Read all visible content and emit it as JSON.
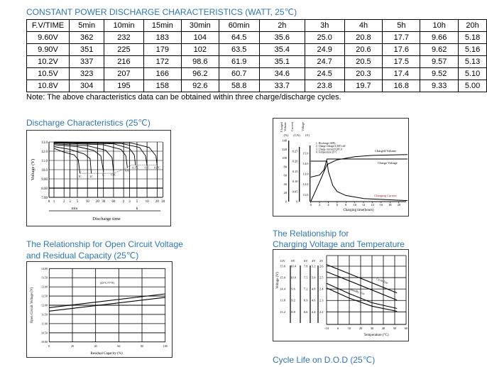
{
  "table": {
    "title": "CONSTANT POWER DISCHARGE CHARACTERISTICS (WATT, 25℃)",
    "headers": [
      "F.V/TIME",
      "5min",
      "10min",
      "15min",
      "30min",
      "60min",
      "2h",
      "3h",
      "4h",
      "5h",
      "10h",
      "20h"
    ],
    "rows": [
      [
        "9.60V",
        "362",
        "232",
        "183",
        "104",
        "64.5",
        "35.6",
        "25.0",
        "20.8",
        "17.7",
        "9.66",
        "5.18"
      ],
      [
        "9.90V",
        "351",
        "225",
        "179",
        "102",
        "63.5",
        "35.4",
        "24.9",
        "20.6",
        "17.6",
        "9.62",
        "5.16"
      ],
      [
        "10.2V",
        "337",
        "216",
        "172",
        "98.6",
        "61.9",
        "35.1",
        "24.7",
        "20.5",
        "17.5",
        "9.57",
        "5.13"
      ],
      [
        "10.5V",
        "323",
        "207",
        "166",
        "96.2",
        "60.7",
        "34.6",
        "24.5",
        "20.3",
        "17.4",
        "9.52",
        "5.10"
      ],
      [
        "10.8V",
        "304",
        "195",
        "158",
        "92.6",
        "58.8",
        "33.7",
        "23.8",
        "19.7",
        "16.8",
        "9.33",
        "5.00"
      ]
    ],
    "note": "Note: The above characteristics data can be obtained within three charge/discharge cycles."
  },
  "headings": {
    "discharge": "Discharge Characteristics (25℃)",
    "ocv_line1": "The Relationship for Open Circuit Voltage",
    "ocv_line2": "and Residual Capacity (25℃)",
    "charging_line1": "The Relationship for",
    "charging_line2": "Charging Voltage and Temperature",
    "cycle": "Cycle Life on D.O.D (25℃)"
  },
  "accent_color": "#2e75b6",
  "chart_data": [
    {
      "id": "discharge",
      "type": "line",
      "ylabel": "Voltage (V)",
      "xlabel": "Discharge time",
      "x_groups": [
        "min",
        "h"
      ],
      "ylim": [
        7.0,
        13.0
      ],
      "y_ticks": [
        "7.00",
        "8.00",
        "9.00",
        "10.0",
        "11.0",
        "12.0",
        "13.0"
      ],
      "x_ticks_min": [
        "0",
        "1",
        "2",
        "3",
        "5",
        "10",
        "20",
        "30",
        "60"
      ],
      "x_ticks_h": [
        "2",
        "3",
        "5",
        "10",
        "20",
        "30"
      ],
      "series": [
        {
          "name": "3C",
          "points": [
            [
              1,
              12.3
            ],
            [
              2,
              11.9
            ],
            [
              4,
              11.6
            ],
            [
              5.3,
              11.1
            ],
            [
              6,
              9.6
            ]
          ]
        },
        {
          "name": "2C",
          "points": [
            [
              1,
              12.5
            ],
            [
              3,
              12.2
            ],
            [
              8,
              11.7
            ],
            [
              12,
              11.2
            ],
            [
              13,
              9.6
            ]
          ]
        },
        {
          "name": "1C",
          "points": [
            [
              1,
              12.7
            ],
            [
              5,
              12.5
            ],
            [
              15,
              12.1
            ],
            [
              25,
              11.5
            ],
            [
              30,
              9.8
            ]
          ]
        },
        {
          "name": "0.6C",
          "points": [
            [
              1,
              12.8
            ],
            [
              10,
              12.6
            ],
            [
              35,
              12.1
            ],
            [
              54,
              11.3
            ],
            [
              60,
              9.8
            ]
          ]
        },
        {
          "name": "0.3C",
          "points": [
            [
              1,
              12.9
            ],
            [
              30,
              12.7
            ],
            [
              100,
              12.2
            ],
            [
              140,
              11.5
            ],
            [
              155,
              10.2
            ]
          ]
        },
        {
          "name": "0.17C",
          "points": [
            [
              1,
              12.95
            ],
            [
              60,
              12.8
            ],
            [
              180,
              12.3
            ],
            [
              250,
              11.6
            ],
            [
              270,
              10.5
            ]
          ]
        },
        {
          "name": "0.1C",
          "points": [
            [
              1,
              13.0
            ],
            [
              100,
              12.85
            ],
            [
              360,
              12.4
            ],
            [
              540,
              11.5
            ],
            [
              600,
              10.5
            ]
          ]
        },
        {
          "name": "0.05C",
          "points": [
            [
              1,
              13.0
            ],
            [
              200,
              12.9
            ],
            [
              700,
              12.4
            ],
            [
              1100,
              11.5
            ],
            [
              1200,
              10.5
            ]
          ]
        }
      ]
    },
    {
      "id": "charging",
      "type": "line",
      "xlabel": "Charging time(hours)",
      "axis_headers": [
        [
          "Charged",
          "Volume",
          "(%)"
        ],
        [
          "Current",
          "(CA)"
        ],
        [
          "Voltage",
          "(V)"
        ]
      ],
      "x_ticks": [
        "0",
        "2",
        "4",
        "6",
        "8",
        "10",
        "12",
        "14",
        "16",
        "18",
        "20"
      ],
      "pct_ticks": [
        "0",
        "20",
        "40",
        "60",
        "80",
        "100",
        "120",
        "140"
      ],
      "ca_ticks": [
        "0",
        "0.05",
        "0.10",
        "0.15",
        "0.20",
        "0.25"
      ],
      "v_ticks": [
        "11.0",
        "12.0",
        "13.0",
        "14.0",
        "15.0"
      ],
      "notes": [
        "1. Discharge:100%",
        "2. Charge voltage:2.40V/cell",
        "3. Charge current:0.20CA",
        "4. Temperature:25°C"
      ],
      "series": [
        {
          "name": "Charged Volume",
          "unit": "%",
          "points": [
            [
              0,
              0
            ],
            [
              2,
              45
            ],
            [
              3.7,
              85
            ],
            [
              6,
              96
            ],
            [
              10,
              103
            ],
            [
              14,
              106
            ],
            [
              22,
              108
            ]
          ]
        },
        {
          "name": "Charge Voltage",
          "unit": "V",
          "points": [
            [
              0,
              12.7
            ],
            [
              2,
              12.9
            ],
            [
              3,
              13.4
            ],
            [
              3.7,
              14.45
            ],
            [
              22,
              14.45
            ]
          ]
        },
        {
          "name": "Charging Current",
          "unit": "CA",
          "points": [
            [
              0,
              0.2
            ],
            [
              3.7,
              0.2
            ],
            [
              4,
              0.15
            ],
            [
              5,
              0.08
            ],
            [
              6,
              0.05
            ],
            [
              8,
              0.03
            ],
            [
              12,
              0.015
            ],
            [
              22,
              0.005
            ]
          ]
        }
      ],
      "current_label_color": "#b22222"
    },
    {
      "id": "ocv",
      "type": "line",
      "xlabel": "Residual Capacity (%)",
      "ylabel": "Open Circuit Voltage (V)",
      "annotation": "(25°C/77°F)",
      "xlim": [
        0,
        100
      ],
      "ylim": [
        10.0,
        14.0
      ],
      "x_ticks": [
        "0",
        "20",
        "40",
        "60",
        "80",
        "100"
      ],
      "y_ticks": [
        "10.00",
        "10.50",
        "11.00",
        "11.50",
        "12.00",
        "12.50",
        "13.00",
        "13.50",
        "14.00"
      ],
      "series": [
        {
          "points": [
            [
              0,
              11.87
            ],
            [
              100,
              12.62
            ]
          ]
        },
        {
          "points": [
            [
              0,
              11.68
            ],
            [
              100,
              12.43
            ]
          ]
        }
      ]
    },
    {
      "id": "temperature",
      "type": "line",
      "xlabel": "Temperature (°C)",
      "ylabel": "Voltage (V)",
      "xlim": [
        -10,
        60
      ],
      "ylim": [
        2.2,
        2.6
      ],
      "x_ticks": [
        "-10",
        "0",
        "10",
        "20",
        "30",
        "40",
        "50",
        "60"
      ],
      "y_columns": [
        "12V",
        "8V",
        "6V",
        "4V",
        "2V"
      ],
      "y_rows": [
        [
          "15.6",
          "10.4",
          "7.8",
          "5.2",
          "2.6"
        ],
        [
          "15.0",
          "10.0",
          "7.5",
          "5.0",
          "2.5"
        ],
        [
          "14.4",
          "9.6",
          "7.2",
          "4.8",
          "2.4"
        ],
        [
          "13.8",
          "9.2",
          "6.9",
          "4.6",
          "2.3"
        ],
        [
          "13.2",
          "8.8",
          "6.6",
          "4.4",
          "2.2"
        ]
      ],
      "band_labels": [
        "Cycle Use",
        "Standby Use"
      ],
      "series": [
        {
          "points": [
            [
              -10,
              2.614
            ],
            [
              52,
              2.366
            ]
          ]
        },
        {
          "points": [
            [
              -10,
              2.552
            ],
            [
              52,
              2.303
            ]
          ]
        },
        {
          "points": [
            [
              -10,
              2.45
            ],
            [
              10,
              2.36
            ],
            [
              30,
              2.28
            ],
            [
              52,
              2.23
            ]
          ]
        },
        {
          "points": [
            [
              -10,
              2.41
            ],
            [
              10,
              2.32
            ],
            [
              30,
              2.25
            ],
            [
              52,
              2.205
            ]
          ]
        }
      ]
    }
  ]
}
